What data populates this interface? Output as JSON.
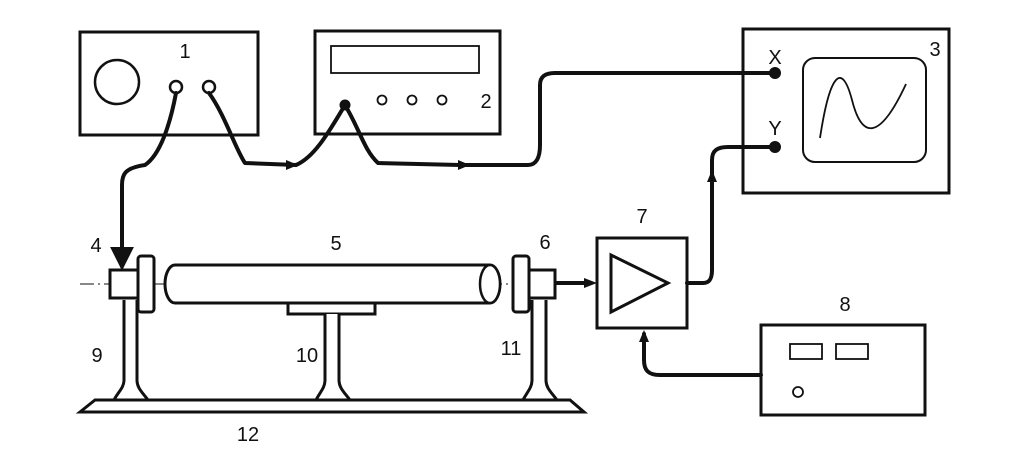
{
  "labels": {
    "generator": "1",
    "frequency_meter": "2",
    "oscilloscope": "3",
    "emitter": "4",
    "tube": "5",
    "receiver": "6",
    "amplifier": "7",
    "power_supply": "8",
    "stand_left": "9",
    "stand_middle": "10",
    "stand_right": "11",
    "base": "12"
  },
  "oscilloscope_inputs": {
    "x": "X",
    "y": "Y"
  }
}
